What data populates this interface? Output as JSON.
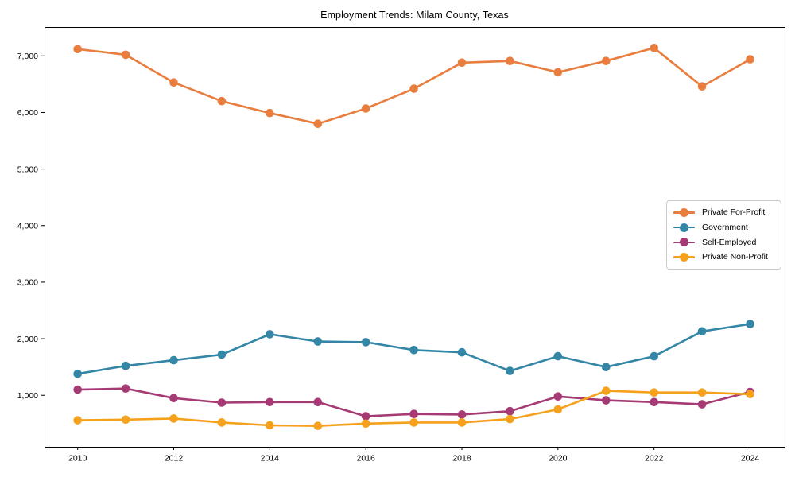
{
  "page": {
    "background": "#ffffff"
  },
  "chart_data": {
    "type": "line",
    "title": "Employment Trends: Milam County, Texas",
    "xlabel": "",
    "ylabel": "",
    "grid": false,
    "legend_position": "center-right",
    "axis_color": "#000000",
    "x": [
      2010,
      2011,
      2012,
      2013,
      2014,
      2015,
      2016,
      2017,
      2018,
      2019,
      2020,
      2021,
      2022,
      2023,
      2024
    ],
    "series": [
      {
        "name": "Private For-Profit",
        "color": "#e87d3e",
        "marker": "circle",
        "values": [
          7120,
          7020,
          6530,
          6200,
          5990,
          5800,
          6070,
          6420,
          6880,
          6910,
          6710,
          6910,
          7140,
          6460,
          6940
        ]
      },
      {
        "name": "Government",
        "color": "#3386a5",
        "marker": "circle",
        "values": [
          1380,
          1520,
          1620,
          1720,
          2080,
          1950,
          1940,
          1800,
          1760,
          1430,
          1690,
          1500,
          1690,
          2130,
          2260
        ]
      },
      {
        "name": "Self-Employed",
        "color": "#a53a74",
        "marker": "circle",
        "values": [
          1100,
          1120,
          950,
          870,
          880,
          880,
          630,
          670,
          660,
          720,
          980,
          910,
          880,
          840,
          1060
        ]
      },
      {
        "name": "Private Non-Profit",
        "color": "#f6a11b",
        "marker": "circle",
        "values": [
          560,
          570,
          590,
          520,
          470,
          460,
          500,
          520,
          520,
          580,
          750,
          1080,
          1050,
          1050,
          1020
        ]
      }
    ],
    "xticks": {
      "values": [
        2010,
        2012,
        2014,
        2016,
        2018,
        2020,
        2022,
        2024
      ],
      "labels": [
        "2010",
        "2012",
        "2014",
        "2016",
        "2018",
        "2020",
        "2022",
        "2024"
      ]
    },
    "yticks": {
      "values": [
        1000,
        2000,
        3000,
        4000,
        5000,
        6000,
        7000
      ],
      "labels": [
        "1,000",
        "2,000",
        "3,000",
        "4,000",
        "5,000",
        "6,000",
        "7,000"
      ]
    },
    "xlim": [
      2009.31,
      2024.72
    ],
    "ylim": [
      90,
      7510
    ]
  }
}
